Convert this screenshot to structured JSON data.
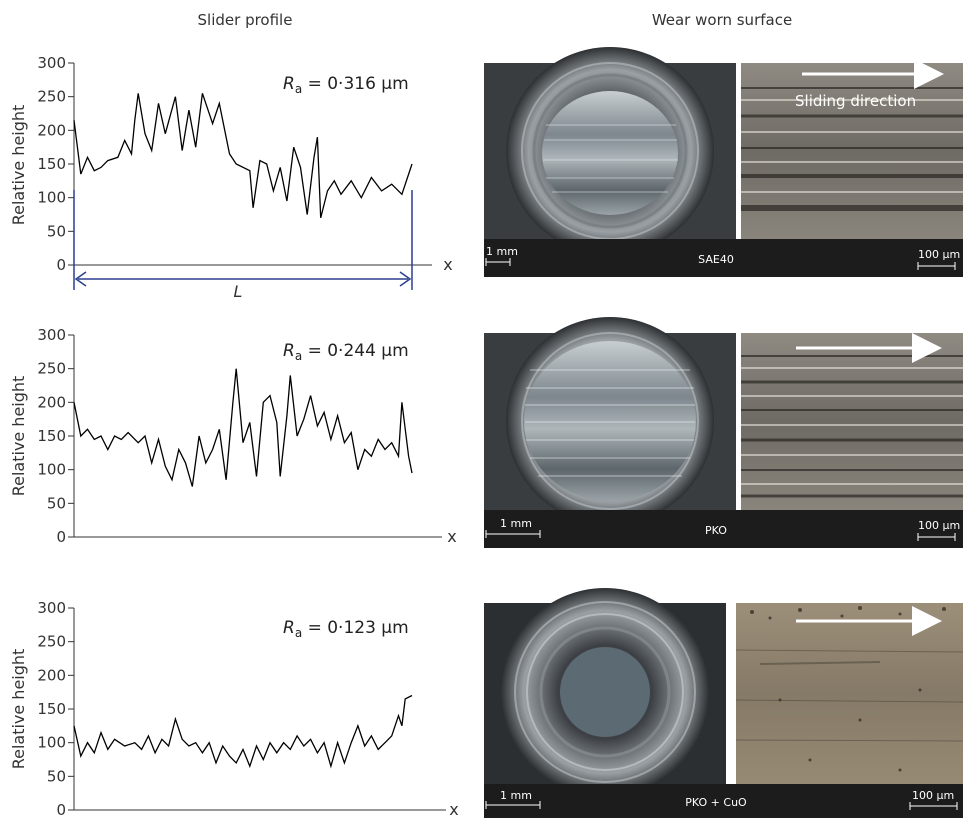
{
  "headers": {
    "left": "Slider profile",
    "right": "Wear worn surface"
  },
  "ylabel": "Relative height",
  "xlabel": "x",
  "length_label": "L",
  "ra_symbol": "R",
  "ra_subscript": "a",
  "scale_bars": {
    "macro": "1 mm",
    "micro": "100 μm"
  },
  "sliding_direction_label": "Sliding direction",
  "colors": {
    "profile": "#000000",
    "axis": "#333333",
    "length_marker": "#2b3f8f",
    "label_bar": "#1c1c1c"
  },
  "panels": [
    {
      "lubricant": "SAE40",
      "ra_value": " = 0·316 μm"
    },
    {
      "lubricant": "PKO",
      "ra_value": " = 0·244 μm"
    },
    {
      "lubricant": "PKO + CuO",
      "ra_value": " = 0·123 μm"
    }
  ],
  "chart_data": [
    {
      "type": "line",
      "title": "",
      "xlabel": "x",
      "ylabel": "Relative height",
      "ylim": [
        0,
        300
      ],
      "yticks": [
        0,
        50,
        100,
        150,
        200,
        250,
        300
      ],
      "x_range": [
        0,
        1
      ],
      "series": [
        {
          "key": [
            [
              0.0,
              215
            ],
            [
              0.02,
              135
            ],
            [
              0.04,
              160
            ],
            [
              0.06,
              140
            ],
            [
              0.08,
              145
            ],
            [
              0.1,
              155
            ],
            [
              0.13,
              160
            ],
            [
              0.15,
              185
            ],
            [
              0.17,
              165
            ],
            [
              0.18,
              215
            ],
            [
              0.19,
              255
            ],
            [
              0.21,
              195
            ],
            [
              0.23,
              170
            ],
            [
              0.25,
              240
            ],
            [
              0.27,
              195
            ],
            [
              0.3,
              250
            ],
            [
              0.32,
              170
            ],
            [
              0.34,
              230
            ],
            [
              0.36,
              175
            ],
            [
              0.38,
              255
            ],
            [
              0.41,
              210
            ],
            [
              0.43,
              240
            ],
            [
              0.46,
              165
            ],
            [
              0.48,
              150
            ],
            [
              0.52,
              140
            ],
            [
              0.53,
              85
            ],
            [
              0.55,
              155
            ],
            [
              0.57,
              150
            ],
            [
              0.59,
              110
            ],
            [
              0.61,
              145
            ],
            [
              0.63,
              95
            ],
            [
              0.65,
              175
            ],
            [
              0.67,
              145
            ],
            [
              0.69,
              75
            ],
            [
              0.71,
              160
            ],
            [
              0.72,
              190
            ],
            [
              0.73,
              70
            ],
            [
              0.75,
              110
            ],
            [
              0.77,
              125
            ],
            [
              0.79,
              105
            ],
            [
              0.82,
              125
            ],
            [
              0.85,
              100
            ],
            [
              0.88,
              130
            ],
            [
              0.91,
              110
            ],
            [
              0.94,
              120
            ],
            [
              0.97,
              105
            ],
            [
              1.0,
              150
            ]
          ]
        }
      ]
    },
    {
      "type": "line",
      "title": "",
      "xlabel": "x",
      "ylabel": "Relative height",
      "ylim": [
        0,
        300
      ],
      "yticks": [
        0,
        50,
        100,
        150,
        200,
        250,
        300
      ],
      "x_range": [
        0,
        1
      ],
      "series": [
        {
          "key": [
            [
              0.0,
              200
            ],
            [
              0.02,
              150
            ],
            [
              0.04,
              160
            ],
            [
              0.06,
              145
            ],
            [
              0.08,
              150
            ],
            [
              0.1,
              130
            ],
            [
              0.12,
              150
            ],
            [
              0.14,
              145
            ],
            [
              0.16,
              155
            ],
            [
              0.19,
              140
            ],
            [
              0.21,
              150
            ],
            [
              0.23,
              110
            ],
            [
              0.25,
              145
            ],
            [
              0.27,
              105
            ],
            [
              0.29,
              85
            ],
            [
              0.31,
              130
            ],
            [
              0.33,
              110
            ],
            [
              0.35,
              75
            ],
            [
              0.37,
              150
            ],
            [
              0.39,
              110
            ],
            [
              0.41,
              130
            ],
            [
              0.43,
              160
            ],
            [
              0.45,
              85
            ],
            [
              0.47,
              200
            ],
            [
              0.48,
              250
            ],
            [
              0.5,
              140
            ],
            [
              0.52,
              170
            ],
            [
              0.54,
              90
            ],
            [
              0.56,
              200
            ],
            [
              0.58,
              210
            ],
            [
              0.6,
              170
            ],
            [
              0.61,
              90
            ],
            [
              0.63,
              180
            ],
            [
              0.64,
              240
            ],
            [
              0.66,
              150
            ],
            [
              0.68,
              175
            ],
            [
              0.7,
              210
            ],
            [
              0.72,
              165
            ],
            [
              0.74,
              185
            ],
            [
              0.76,
              145
            ],
            [
              0.78,
              180
            ],
            [
              0.8,
              140
            ],
            [
              0.82,
              155
            ],
            [
              0.84,
              100
            ],
            [
              0.86,
              130
            ],
            [
              0.88,
              120
            ],
            [
              0.9,
              145
            ],
            [
              0.92,
              130
            ],
            [
              0.94,
              140
            ],
            [
              0.96,
              120
            ],
            [
              0.97,
              200
            ],
            [
              0.99,
              120
            ],
            [
              1.0,
              95
            ]
          ]
        }
      ]
    },
    {
      "type": "line",
      "title": "",
      "xlabel": "x",
      "ylabel": "Relative height",
      "ylim": [
        0,
        300
      ],
      "yticks": [
        0,
        50,
        100,
        150,
        200,
        250,
        300
      ],
      "x_range": [
        0,
        1
      ],
      "series": [
        {
          "key": [
            [
              0.0,
              125
            ],
            [
              0.02,
              80
            ],
            [
              0.04,
              100
            ],
            [
              0.06,
              85
            ],
            [
              0.08,
              115
            ],
            [
              0.1,
              90
            ],
            [
              0.12,
              105
            ],
            [
              0.15,
              95
            ],
            [
              0.18,
              100
            ],
            [
              0.2,
              90
            ],
            [
              0.22,
              110
            ],
            [
              0.24,
              85
            ],
            [
              0.26,
              105
            ],
            [
              0.28,
              95
            ],
            [
              0.3,
              135
            ],
            [
              0.32,
              105
            ],
            [
              0.34,
              95
            ],
            [
              0.36,
              100
            ],
            [
              0.38,
              85
            ],
            [
              0.4,
              100
            ],
            [
              0.42,
              70
            ],
            [
              0.44,
              95
            ],
            [
              0.46,
              80
            ],
            [
              0.48,
              70
            ],
            [
              0.5,
              90
            ],
            [
              0.52,
              65
            ],
            [
              0.54,
              95
            ],
            [
              0.56,
              75
            ],
            [
              0.58,
              100
            ],
            [
              0.6,
              85
            ],
            [
              0.62,
              100
            ],
            [
              0.64,
              90
            ],
            [
              0.66,
              110
            ],
            [
              0.68,
              95
            ],
            [
              0.7,
              105
            ],
            [
              0.72,
              85
            ],
            [
              0.74,
              100
            ],
            [
              0.76,
              65
            ],
            [
              0.78,
              100
            ],
            [
              0.8,
              70
            ],
            [
              0.82,
              100
            ],
            [
              0.84,
              125
            ],
            [
              0.86,
              95
            ],
            [
              0.88,
              110
            ],
            [
              0.9,
              90
            ],
            [
              0.92,
              100
            ],
            [
              0.94,
              110
            ],
            [
              0.96,
              140
            ],
            [
              0.97,
              125
            ],
            [
              0.98,
              165
            ],
            [
              1.0,
              170
            ]
          ]
        }
      ]
    }
  ]
}
